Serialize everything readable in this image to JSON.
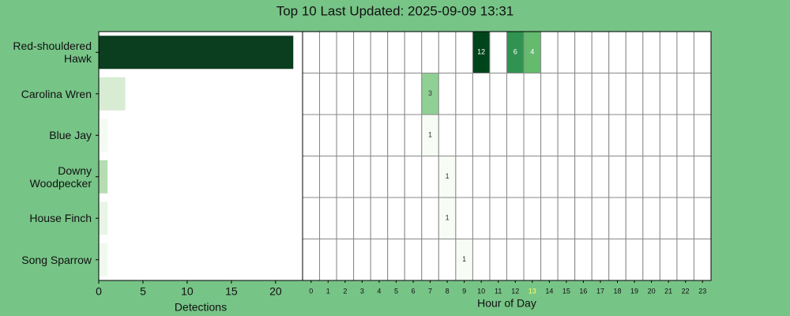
{
  "title": "Top 10 Last Updated: 2025-09-09 13:31",
  "chart_data": [
    {
      "type": "barh",
      "categories": [
        "Red-shouldered Hawk",
        "Carolina Wren",
        "Blue Jay",
        "Downy Woodpecker",
        "House Finch",
        "Song Sparrow"
      ],
      "values": [
        22,
        3,
        1,
        1,
        1,
        1
      ],
      "colors": [
        "#0b3d1f",
        "#d7ecd3",
        "#f4fbf2",
        "#b6dcb1",
        "#e9f5e6",
        "#f1f9ef"
      ],
      "xlim": [
        0,
        23.05
      ],
      "xticks": [
        0,
        5,
        10,
        15,
        20
      ],
      "xlabel": "Detections"
    },
    {
      "type": "heatmap",
      "x": [
        "0",
        "1",
        "2",
        "3",
        "4",
        "5",
        "6",
        "7",
        "8",
        "9",
        "10",
        "11",
        "12",
        "13",
        "14",
        "15",
        "16",
        "17",
        "18",
        "19",
        "20",
        "21",
        "22",
        "23"
      ],
      "z": [
        [
          0,
          0,
          0,
          0,
          0,
          0,
          0,
          0,
          0,
          0,
          12,
          0,
          6,
          4,
          0,
          0,
          0,
          0,
          0,
          0,
          0,
          0,
          0,
          0
        ],
        [
          0,
          0,
          0,
          0,
          0,
          0,
          0,
          3,
          0,
          0,
          0,
          0,
          0,
          0,
          0,
          0,
          0,
          0,
          0,
          0,
          0,
          0,
          0,
          0
        ],
        [
          0,
          0,
          0,
          0,
          0,
          0,
          0,
          1,
          0,
          0,
          0,
          0,
          0,
          0,
          0,
          0,
          0,
          0,
          0,
          0,
          0,
          0,
          0,
          0
        ],
        [
          0,
          0,
          0,
          0,
          0,
          0,
          0,
          0,
          1,
          0,
          0,
          0,
          0,
          0,
          0,
          0,
          0,
          0,
          0,
          0,
          0,
          0,
          0,
          0
        ],
        [
          0,
          0,
          0,
          0,
          0,
          0,
          0,
          0,
          1,
          0,
          0,
          0,
          0,
          0,
          0,
          0,
          0,
          0,
          0,
          0,
          0,
          0,
          0,
          0
        ],
        [
          0,
          0,
          0,
          0,
          0,
          0,
          0,
          0,
          0,
          1,
          0,
          0,
          0,
          0,
          0,
          0,
          0,
          0,
          0,
          0,
          0,
          0,
          0,
          0
        ]
      ],
      "colormap": [
        "#f7fcf5",
        "#6abf71",
        "#24894a",
        "#0f6630",
        "#00441b"
      ],
      "highlight_tick": 13,
      "highlight_color": "#ffff66",
      "xlabel": "Hour of Day"
    }
  ]
}
